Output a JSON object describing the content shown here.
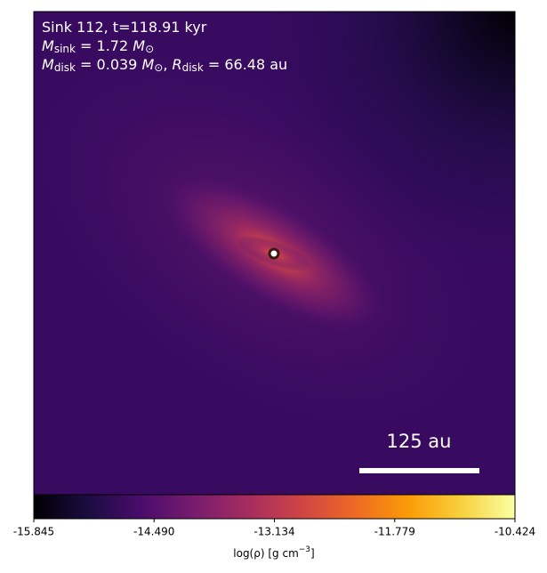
{
  "chart_data": {
    "type": "density-map",
    "annotation_lines": [
      [
        "Sink 112, t=118.91 kyr"
      ],
      [
        "M",
        "sink",
        " = 1.72 ",
        "M",
        "⊙"
      ],
      [
        "M",
        "disk",
        " = 0.039 ",
        "M",
        "⊙",
        ", ",
        "R",
        "disk",
        " = 66.48 au"
      ]
    ],
    "scale_bar_label": "125 au",
    "colorbar_label": [
      "log(ρ) [g cm",
      "−3",
      "]"
    ],
    "clim": [
      -15.845,
      -10.424
    ],
    "cticks": [
      -15.845,
      {
        "value": -14.49,
        "label": "-14.490"
      },
      -13.134,
      -11.779,
      -10.424
    ],
    "colormap": [
      "#000004",
      "#1b0c41",
      "#4a0c6b",
      "#781c6d",
      "#a52c60",
      "#cf4446",
      "#ed6925",
      "#fb9b06",
      "#f7d13d",
      "#fcffa4"
    ]
  }
}
